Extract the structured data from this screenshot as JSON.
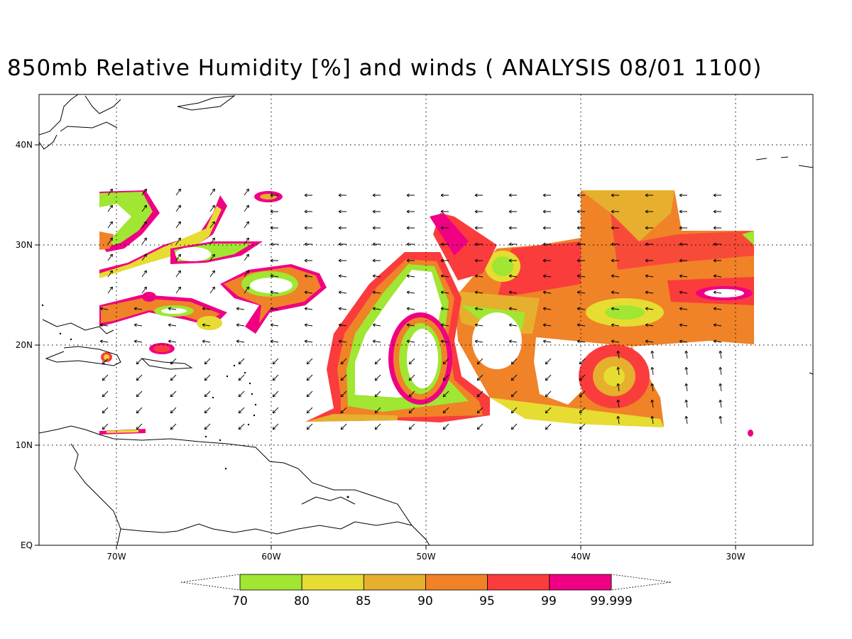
{
  "title": "850mb Relative Humidity [%] and winds ( ANALYSIS 08/01 1100)",
  "map": {
    "region": "Tropical Atlantic / Caribbean",
    "lon_range": [
      -75,
      -25
    ],
    "lat_range": [
      0,
      45
    ],
    "x_ticks": [
      "70W",
      "60W",
      "50W",
      "40W",
      "30W"
    ],
    "y_ticks": [
      "EQ",
      "10N",
      "20N",
      "30N",
      "40N"
    ],
    "grid": true
  },
  "colorbar": {
    "levels": [
      "70",
      "80",
      "85",
      "90",
      "95",
      "99",
      "99.999"
    ],
    "colors": [
      "#a0e632",
      "#e6dc32",
      "#e6af2d",
      "#f08228",
      "#fa3c3c",
      "#f00082"
    ]
  }
}
